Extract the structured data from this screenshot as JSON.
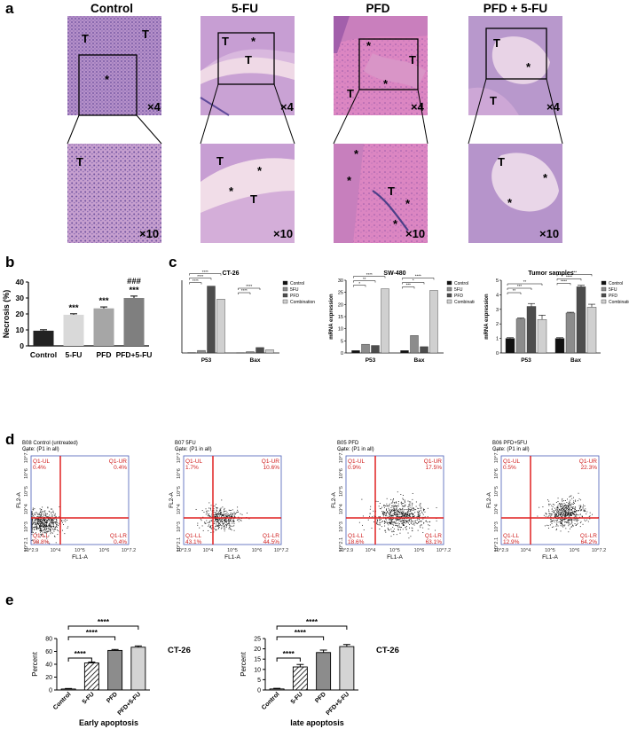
{
  "panels": {
    "a": {
      "label": "a",
      "columns": [
        "Control",
        "5-FU",
        "PFD",
        "PFD + 5-FU"
      ],
      "mag_top": "×4",
      "mag_bottom": "×10",
      "markers_top": [
        [
          "T",
          "T",
          "*"
        ],
        [
          "T",
          "*",
          "T"
        ],
        [
          "*",
          "T",
          "T",
          "*"
        ],
        [
          "T",
          "*",
          "T"
        ]
      ],
      "markers_bottom": [
        [
          "T"
        ],
        [
          "T",
          "*",
          "*",
          "T"
        ],
        [
          "*",
          "*",
          "T",
          "*",
          "*"
        ],
        [
          "T",
          "*",
          "*"
        ]
      ],
      "colors": {
        "control_tissue": "#b48cc6",
        "necrosis": "#e6b9d5",
        "eosin": "#d46fb4",
        "hematoxylin": "#6c4f9c"
      }
    },
    "b": {
      "label": "b"
    },
    "c": {
      "label": "c"
    },
    "d": {
      "label": "d"
    },
    "e": {
      "label": "e"
    }
  },
  "chart_data": [
    {
      "id": "b",
      "type": "bar",
      "categories": [
        "Control",
        "5-FU",
        "PFD",
        "PFD+5-FU"
      ],
      "values": [
        9.5,
        19.5,
        23.5,
        30.0
      ],
      "errors": [
        0.6,
        0.6,
        0.9,
        1.2
      ],
      "ylabel": "Necrosis (%)",
      "ylim": [
        0,
        40
      ],
      "yticks": [
        "0",
        "10",
        "20",
        "30",
        "40"
      ],
      "annotations": [
        "",
        "***",
        "***",
        "***"
      ],
      "annotations2": [
        "",
        "",
        "",
        "###"
      ],
      "colors": [
        "#222222",
        "#d9d9d9",
        "#a6a6a6",
        "#7f7f7f"
      ]
    },
    {
      "id": "c1",
      "type": "bar",
      "title": "CT-26",
      "categories": [
        "P53",
        "Bax"
      ],
      "series": [
        {
          "name": "Control",
          "values": [
            0.5,
            0.4
          ]
        },
        {
          "name": "5FU",
          "values": [
            3.5,
            1.8
          ]
        },
        {
          "name": "PFD",
          "values": [
            92,
            7.5
          ]
        },
        {
          "name": "Combination",
          "values": [
            74,
            4.5
          ]
        }
      ],
      "ylim": [
        0,
        100
      ],
      "sig": [
        "****",
        "****",
        "****",
        "****",
        "****"
      ]
    },
    {
      "id": "c2",
      "type": "bar",
      "title": "SW-480",
      "ylabel": "mRNA expression",
      "categories": [
        "P53",
        "Bax"
      ],
      "series": [
        {
          "name": "Control",
          "values": [
            1,
            1
          ]
        },
        {
          "name": "5FU",
          "values": [
            3.6,
            7.2
          ]
        },
        {
          "name": "PFD",
          "values": [
            3.1,
            2.6
          ]
        },
        {
          "name": "Combination",
          "values": [
            26.5,
            25.8
          ]
        }
      ],
      "ylim": [
        0,
        30
      ],
      "yticks": [
        "0",
        "5",
        "10",
        "15",
        "20",
        "25",
        "30"
      ],
      "sig": [
        "*",
        "**",
        "****",
        "***",
        "*",
        "****"
      ]
    },
    {
      "id": "c3",
      "type": "bar",
      "title": "Tumor samples",
      "ylabel": "mRNA expression",
      "categories": [
        "P53",
        "Bax"
      ],
      "series": [
        {
          "name": "Control",
          "values": [
            1,
            1
          ]
        },
        {
          "name": "5FU",
          "values": [
            2.35,
            2.75
          ]
        },
        {
          "name": "PFD",
          "values": [
            3.2,
            4.55
          ]
        },
        {
          "name": "Combination",
          "values": [
            2.3,
            3.15
          ]
        }
      ],
      "errors": [
        [
          0.05,
          0.05
        ],
        [
          0.05,
          0.05
        ],
        [
          0.2,
          0.1
        ],
        [
          0.3,
          0.2
        ]
      ],
      "ylim": [
        0,
        5
      ],
      "yticks": [
        "0",
        "1",
        "2",
        "3",
        "4",
        "5"
      ],
      "sig": [
        "**",
        "***",
        "**",
        "****",
        "****",
        "***"
      ]
    },
    {
      "id": "d",
      "type": "scatter",
      "xlabel": "FL1-A",
      "ylabel": "FL2-A",
      "xticks": [
        "10^2.9",
        "10^4",
        "10^5",
        "10^6",
        "10^7.2"
      ],
      "yticks": [
        "10^2.1",
        "10^3",
        "10^4",
        "10^5",
        "10^6",
        "10^7.1"
      ],
      "plots": [
        {
          "title": "B08 Control (untreated)",
          "gate": "Gate: (P1 in all)",
          "UL": "Q1-UL\n0.4%",
          "UR": "Q1-UR\n0.4%",
          "LL": "Q1-LL\n98.8%",
          "LR": "Q1-LR\n0.4%"
        },
        {
          "title": "B07 5FU",
          "gate": "Gate: (P1 in all)",
          "UL": "Q1-UL\n1.7%",
          "UR": "Q1-UR\n10.6%",
          "LL": "Q1-LL\n43.1%",
          "LR": "Q1-LR\n44.5%"
        },
        {
          "title": "B05 PFD",
          "gate": "Gate: (P1 in all)",
          "UL": "Q1-UL\n0.9%",
          "UR": "Q1-UR\n17.5%",
          "LL": "Q1-LL\n18.6%",
          "LR": "Q1-LR\n63.1%"
        },
        {
          "title": "B06 PFD+5FU",
          "gate": "Gate: (P1 in all)",
          "UL": "Q1-UL\n0.5%",
          "UR": "Q1-UR\n22.3%",
          "LL": "Q1-LL\n12.9%",
          "LR": "Q1-LR\n64.2%"
        }
      ]
    },
    {
      "id": "e1",
      "type": "bar",
      "title": "Early apoptosis",
      "side_label": "CT-26",
      "ylabel": "Percent",
      "categories": [
        "Control",
        "5-FU",
        "PFD",
        "PFD+5-FU"
      ],
      "values": [
        1.5,
        42,
        61.5,
        66.5
      ],
      "errors": [
        0.8,
        1.5,
        1.5,
        2.0
      ],
      "ylim": [
        0,
        80
      ],
      "yticks": [
        "0",
        "20",
        "40",
        "60",
        "80"
      ],
      "sig": [
        "****",
        "****",
        "****"
      ]
    },
    {
      "id": "e2",
      "type": "bar",
      "title": "late apoptosis",
      "side_label": "CT-26",
      "ylabel": "Percent",
      "categories": [
        "Control",
        "5-FU",
        "PFD",
        "PFD+5-FU"
      ],
      "values": [
        0.5,
        11.2,
        18.2,
        21.1
      ],
      "errors": [
        0.3,
        1.2,
        1.2,
        1.0
      ],
      "ylim": [
        0,
        25
      ],
      "yticks": [
        "0",
        "5",
        "10",
        "15",
        "20",
        "25"
      ],
      "sig": [
        "****",
        "****",
        "****"
      ]
    }
  ]
}
